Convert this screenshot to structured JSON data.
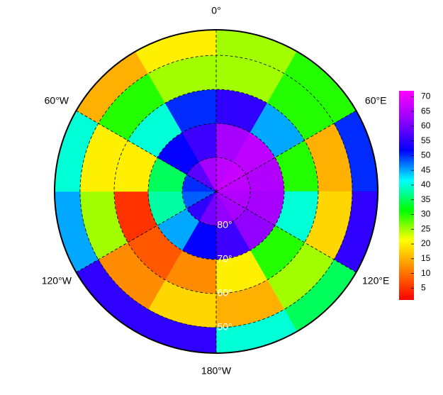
{
  "chart_data": {
    "type": "polar_heatmap",
    "lat_edges": [
      -90,
      -80,
      -70,
      -60,
      -50,
      -42.5
    ],
    "lon_edges": [
      0,
      30,
      60,
      90,
      120,
      150,
      180,
      210,
      240,
      270,
      300,
      330,
      360
    ],
    "values": [
      [
        66,
        67,
        66,
        65,
        64,
        62,
        60,
        55,
        48,
        50,
        58,
        64
      ],
      [
        64,
        66,
        65,
        64,
        62,
        56,
        52,
        45,
        38,
        35,
        52,
        56
      ],
      [
        55,
        45,
        30,
        40,
        30,
        20,
        12,
        8,
        5,
        20,
        40,
        50
      ],
      [
        25,
        30,
        15,
        18,
        25,
        15,
        18,
        12,
        25,
        20,
        30,
        25
      ],
      [
        25,
        30,
        50,
        55,
        35,
        40,
        55,
        55,
        45,
        40,
        15,
        20
      ]
    ],
    "colormap": [
      "#ff0000",
      "#ff8000",
      "#ffff00",
      "#00ff00",
      "#00ffff",
      "#0000ff",
      "#9000ff",
      "#ff00ff"
    ],
    "clim": [
      1,
      72
    ],
    "colorbar_ticks": [
      5,
      10,
      15,
      20,
      25,
      30,
      35,
      40,
      45,
      50,
      55,
      60,
      65,
      70
    ],
    "lon_labels": [
      {
        "value": 0,
        "label": "0°"
      },
      {
        "value": 60,
        "label": "60°E"
      },
      {
        "value": 120,
        "label": "120°E"
      },
      {
        "value": 180,
        "label": "180°W"
      },
      {
        "value": -120,
        "label": "120°W"
      },
      {
        "value": -60,
        "label": "60°W"
      }
    ],
    "lat_labels": [
      {
        "value": -80,
        "label": "80°"
      },
      {
        "value": -70,
        "label": "70°"
      },
      {
        "value": -60,
        "label": "60°"
      },
      {
        "value": -50,
        "label": "50°"
      }
    ]
  }
}
